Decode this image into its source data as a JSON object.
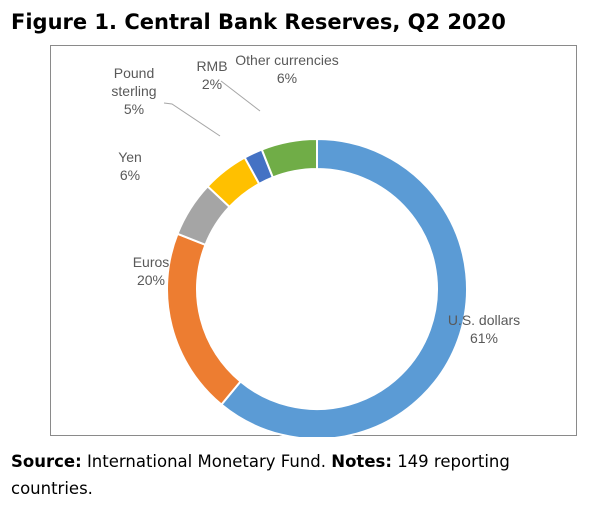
{
  "figure": {
    "title": "Figure 1. Central Bank Reserves, Q2 2020"
  },
  "chart_data": {
    "type": "pie",
    "subtype": "donut",
    "title": "",
    "start_angle_deg": 0,
    "direction": "clockwise",
    "legend": "none",
    "slices": [
      {
        "label_lines": [
          "U.S. dollars"
        ],
        "label": "U.S. dollars",
        "value": 61,
        "value_label": "61%",
        "color": "#5B9BD5"
      },
      {
        "label_lines": [
          "Euros"
        ],
        "label": "Euros",
        "value": 20,
        "value_label": "20%",
        "color": "#ED7D31"
      },
      {
        "label_lines": [
          "Yen"
        ],
        "label": "Yen",
        "value": 6,
        "value_label": "6%",
        "color": "#A5A5A5"
      },
      {
        "label_lines": [
          "Pound",
          "sterling"
        ],
        "label": "Pound sterling",
        "value": 5,
        "value_label": "5%",
        "color": "#FFC000"
      },
      {
        "label_lines": [
          "RMB"
        ],
        "label": "RMB",
        "value": 2,
        "value_label": "2%",
        "color": "#4472C4"
      },
      {
        "label_lines": [
          "Other currencies"
        ],
        "label": "Other currencies",
        "value": 6,
        "value_label": "6%",
        "color": "#70AD47"
      }
    ]
  },
  "footnote": {
    "source_label": "Source:",
    "source_text": "International Monetary Fund.",
    "notes_label": "Notes:",
    "notes_text": "149 reporting countries."
  }
}
